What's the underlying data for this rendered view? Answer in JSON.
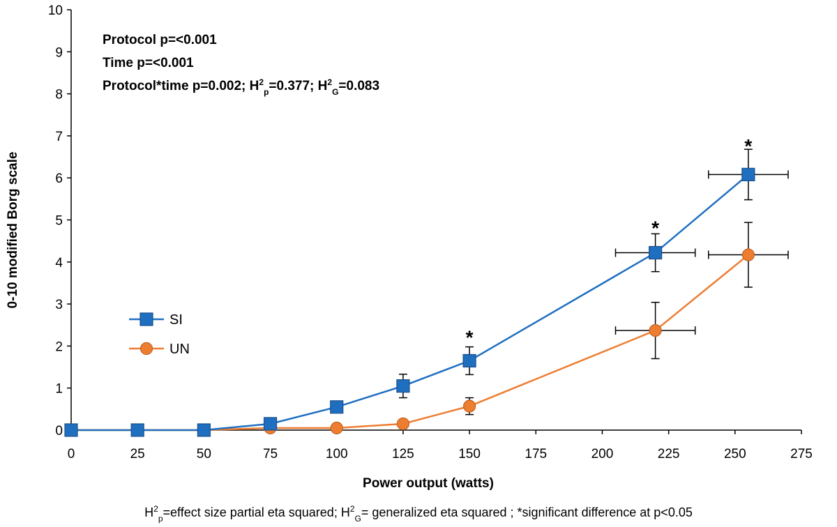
{
  "stats": {
    "line1": "Protocol p=<0.001",
    "line2": "Time p=<0.001",
    "line3_prefix": "Protocol*time p=0.002; Η",
    "line3_sup1": "2",
    "line3_sub1": "p",
    "line3_mid": "=0.377; Η",
    "line3_sup2": "2",
    "line3_sub2": "G",
    "line3_suffix": "=0.083"
  },
  "footnote": {
    "part1": "Η",
    "sup1": "2",
    "sub1": "p",
    "part2": "=effect size partial eta squared; Η",
    "sup2": "2",
    "sub2": "G",
    "part3": "= generalized eta squared ; *significant difference at p<0.05"
  },
  "chart_data": {
    "type": "line",
    "xlabel": "Power output (watts)",
    "ylabel": "0-10 modified Borg scale",
    "xlim": [
      0,
      275
    ],
    "ylim": [
      0,
      10
    ],
    "xticks": [
      0,
      25,
      50,
      75,
      100,
      125,
      150,
      175,
      200,
      225,
      250,
      275
    ],
    "yticks": [
      0,
      1,
      2,
      3,
      4,
      5,
      6,
      7,
      8,
      9,
      10
    ],
    "grid": false,
    "legend_position": "left",
    "series": [
      {
        "name": "SI",
        "color": "#1F6FC0",
        "edge_color": "#1B4F8A",
        "marker": "square",
        "points": [
          {
            "x": 0,
            "y": 0
          },
          {
            "x": 25,
            "y": 0
          },
          {
            "x": 50,
            "y": 0
          },
          {
            "x": 75,
            "y": 0.15
          },
          {
            "x": 100,
            "y": 0.55,
            "y_err": 0.12
          },
          {
            "x": 125,
            "y": 1.05,
            "y_err": 0.28
          },
          {
            "x": 150,
            "y": 1.65,
            "y_err": 0.33
          },
          {
            "x": 220,
            "y": 4.22,
            "y_err": 0.45,
            "x_err": 15
          },
          {
            "x": 255,
            "y": 6.08,
            "y_err": 0.6,
            "x_err": 15
          }
        ]
      },
      {
        "name": "UN",
        "color": "#ED7D31",
        "edge_color": "#C2611E",
        "marker": "circle",
        "points": [
          {
            "x": 0,
            "y": 0
          },
          {
            "x": 25,
            "y": 0
          },
          {
            "x": 50,
            "y": 0
          },
          {
            "x": 75,
            "y": 0.05
          },
          {
            "x": 100,
            "y": 0.05
          },
          {
            "x": 125,
            "y": 0.15
          },
          {
            "x": 150,
            "y": 0.57,
            "y_err": 0.2
          },
          {
            "x": 220,
            "y": 2.37,
            "y_err": 0.67,
            "x_err": 15
          },
          {
            "x": 255,
            "y": 4.17,
            "y_err": 0.77,
            "x_err": 15
          }
        ]
      }
    ],
    "annotations": [
      {
        "text": "*",
        "x": 150,
        "y": 2.25
      },
      {
        "text": "*",
        "x": 220,
        "y": 4.85
      },
      {
        "text": "*",
        "x": 255,
        "y": 6.8
      }
    ]
  }
}
